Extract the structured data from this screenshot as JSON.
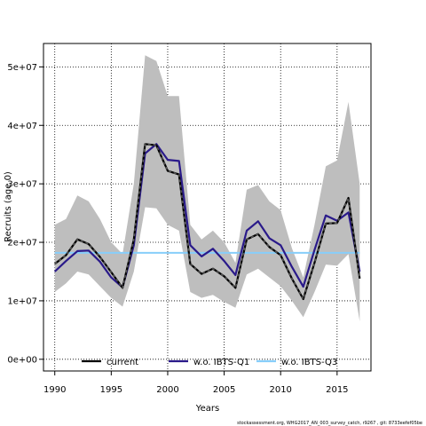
{
  "chart_data": {
    "type": "line",
    "xlabel": "Years",
    "ylabel": "Recruits (age 0)",
    "xlim": [
      1989,
      2018
    ],
    "ylim": [
      -2000000,
      54000000
    ],
    "x_ticks": [
      1990,
      1995,
      2000,
      2005,
      2010,
      2015
    ],
    "x_tick_labels": [
      "1990",
      "1995",
      "2000",
      "2005",
      "2010",
      "2015"
    ],
    "y_ticks": [
      0,
      10000000,
      20000000,
      30000000,
      40000000,
      50000000
    ],
    "y_tick_labels": [
      "0e+00",
      "1e+07",
      "2e+07",
      "3e+07",
      "4e+07",
      "5e+07"
    ],
    "grid": true,
    "legend_position": "bottom",
    "x": [
      1990,
      1991,
      1992,
      1993,
      1994,
      1995,
      1996,
      1997,
      1998,
      1999,
      2000,
      2001,
      2002,
      2003,
      2004,
      2005,
      2006,
      2007,
      2008,
      2009,
      2010,
      2011,
      2012,
      2013,
      2014,
      2015,
      2016,
      2017
    ],
    "confidence_band": {
      "upper": [
        23000000,
        24000000,
        28000000,
        27000000,
        24000000,
        20000000,
        18000000,
        30000000,
        52000000,
        51000000,
        45000000,
        45000000,
        23000000,
        20500000,
        22000000,
        20000000,
        16500000,
        29000000,
        29800000,
        27000000,
        25500000,
        19000000,
        14000000,
        23000000,
        33000000,
        34000000,
        44000000,
        30000000
      ],
      "lower": [
        11500000,
        13000000,
        15000000,
        14500000,
        12500000,
        10500000,
        9000000,
        15000000,
        26000000,
        25800000,
        23000000,
        22000000,
        11500000,
        10500000,
        11000000,
        9800000,
        8800000,
        14500000,
        15500000,
        14000000,
        12500000,
        10000000,
        7200000,
        11500000,
        16200000,
        16000000,
        18000000,
        6500000
      ]
    },
    "series": [
      {
        "name": "current",
        "values": [
          16300000,
          17800000,
          20500000,
          19700000,
          17500000,
          14900000,
          12200000,
          20500000,
          36800000,
          36600000,
          32200000,
          31600000,
          16300000,
          14600000,
          15500000,
          14200000,
          12200000,
          20500000,
          21400000,
          19200000,
          17800000,
          13800000,
          10300000,
          16500000,
          23200000,
          23300000,
          27600000,
          13800000
        ]
      },
      {
        "name": "w.o. IBTS-Q1",
        "values": [
          15000000,
          16800000,
          18500000,
          18600000,
          16700000,
          14000000,
          12300000,
          19500000,
          35200000,
          36800000,
          34100000,
          33900000,
          19500000,
          17600000,
          18900000,
          16800000,
          14400000,
          22000000,
          23600000,
          20700000,
          19500000,
          15800000,
          12400000,
          18700000,
          24600000,
          23700000,
          25100000,
          15000000
        ]
      },
      {
        "name": "w.o. IBTS-Q3",
        "values": [
          18200000,
          18200000,
          18200000,
          18200000,
          18200000,
          18200000,
          18200000,
          18200000,
          18200000,
          18200000,
          18200000,
          18200000,
          18200000,
          18200000,
          18200000,
          18200000,
          18200000,
          18200000,
          18200000,
          18200000,
          18200000,
          18200000,
          18200000,
          18200000,
          18200000,
          18200000,
          18200000,
          18200000
        ]
      }
    ],
    "colors": {
      "band": "#bebebe",
      "current": "#000000",
      "current_overlay": "#555555",
      "q1": "#2a1a8a",
      "q3": "#87cefa",
      "grid": "#000000"
    }
  },
  "footer": "stockassessment.org, WHG2017_AN_003_survey_catch, r9267 , git: 8733eefef05be"
}
